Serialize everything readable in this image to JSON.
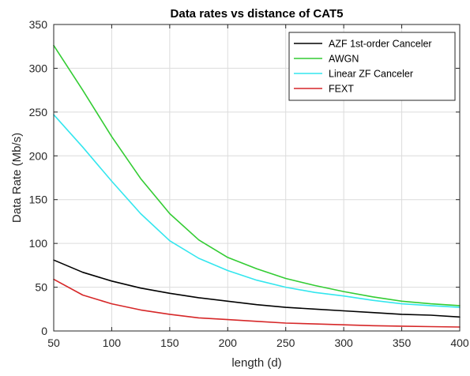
{
  "chart_data": {
    "type": "line",
    "title": "Data rates vs distance of CAT5",
    "xlabel": "length (d)",
    "ylabel": "Data Rate (Mb/s)",
    "xlim": [
      50,
      400
    ],
    "ylim": [
      0,
      350
    ],
    "xticks": [
      50,
      100,
      150,
      200,
      250,
      300,
      350,
      400
    ],
    "yticks": [
      0,
      50,
      100,
      150,
      200,
      250,
      300,
      350
    ],
    "grid": true,
    "legend_position": "top-right",
    "x": [
      50,
      75,
      100,
      125,
      150,
      175,
      200,
      225,
      250,
      275,
      300,
      325,
      350,
      375,
      400
    ],
    "series": [
      {
        "name": "AZF 1st-order Canceler",
        "color": "#000000",
        "values": [
          81,
          67,
          57,
          49,
          43,
          38,
          34,
          30,
          27,
          25,
          23,
          21,
          19,
          18,
          16
        ]
      },
      {
        "name": "AWGN",
        "color": "#33cc33",
        "values": [
          326,
          275,
          222,
          174,
          134,
          104,
          84,
          71,
          60,
          52,
          45,
          39,
          34,
          31,
          29
        ]
      },
      {
        "name": "Linear ZF Canceler",
        "color": "#33e6ee",
        "values": [
          247,
          210,
          171,
          134,
          103,
          83,
          69,
          58,
          50,
          44,
          40,
          35,
          31,
          29,
          27
        ]
      },
      {
        "name": "FEXT",
        "color": "#d62728",
        "values": [
          59,
          41,
          31,
          24,
          19,
          15,
          13,
          11,
          9,
          8,
          7,
          6,
          5.5,
          5,
          4.5
        ]
      }
    ]
  }
}
